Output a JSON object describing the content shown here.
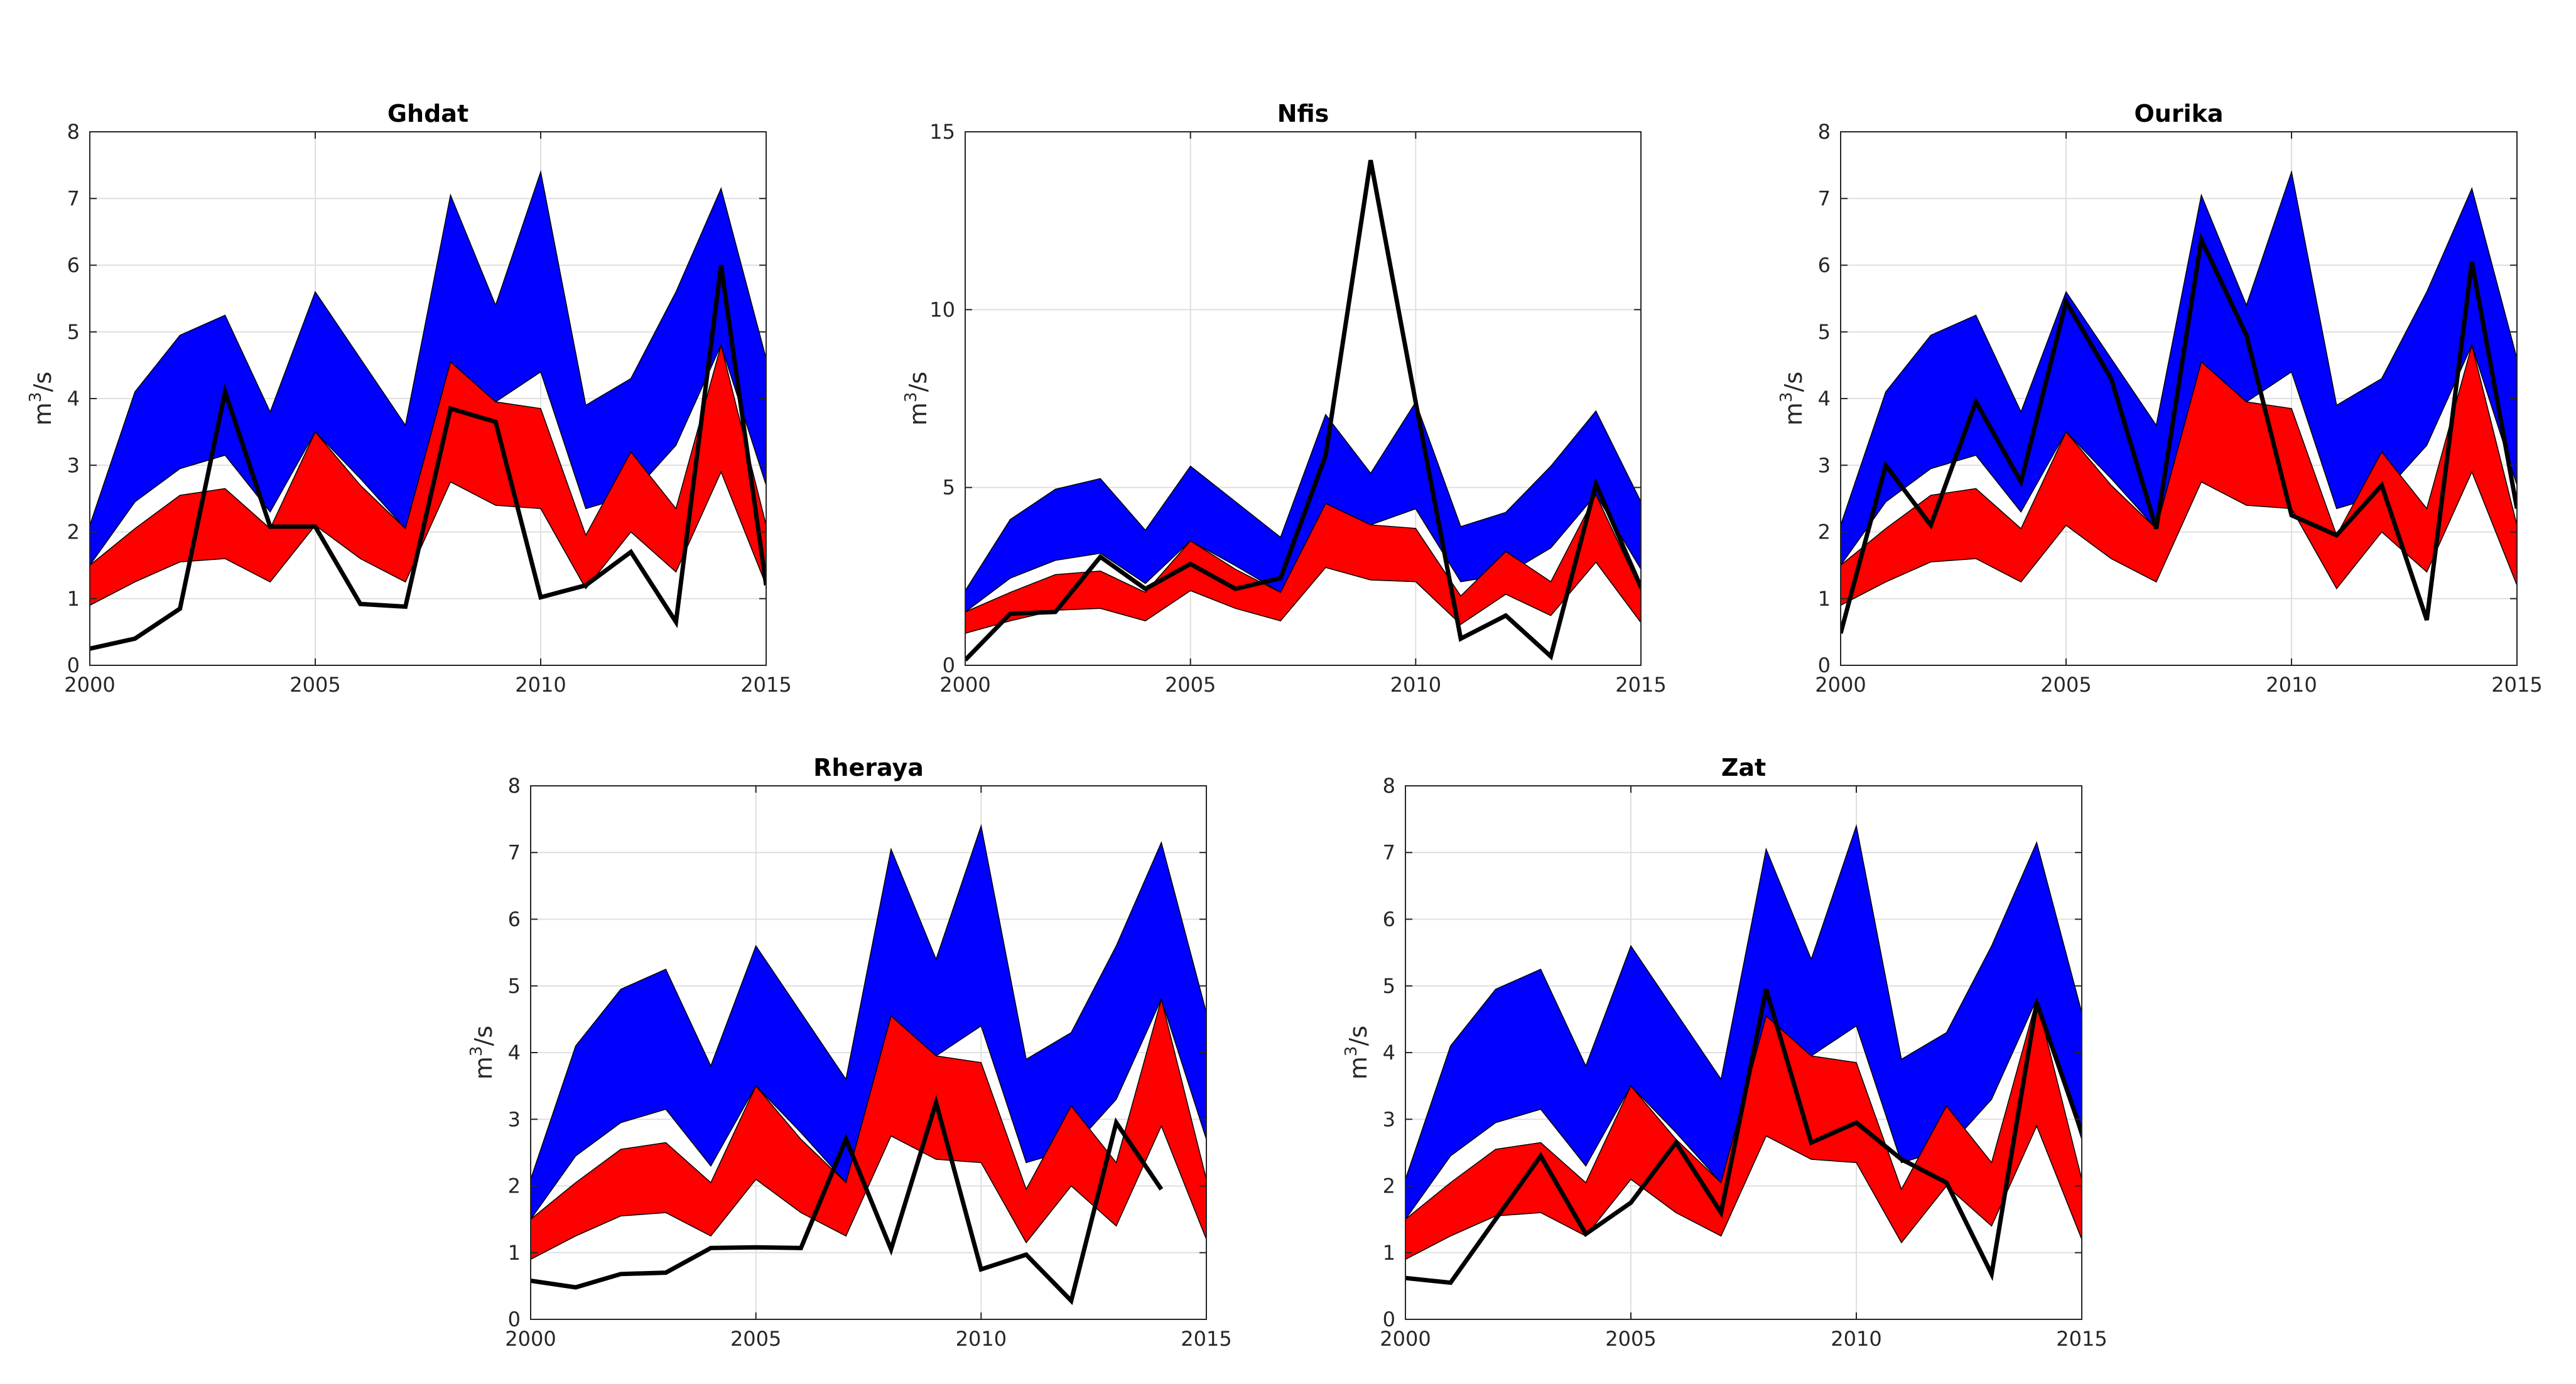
{
  "colors": {
    "upper_band": "#0000ff",
    "lower_band": "#ff0000",
    "observed_line": "#000000",
    "grid": "#dfdfdf"
  },
  "chart_data": [
    {
      "type": "area",
      "title": "Ghdat",
      "ylabel_base": "m",
      "ylabel_sup": "3",
      "ylabel_tail": "/s",
      "xlim": [
        2000,
        2015
      ],
      "ylim": [
        0,
        8
      ],
      "xticks": [
        2000,
        2005,
        2010,
        2015
      ],
      "yticks": [
        0,
        1,
        2,
        3,
        4,
        5,
        6,
        7,
        8
      ],
      "grid": true,
      "x": [
        2000,
        2001,
        2002,
        2003,
        2004,
        2005,
        2006,
        2007,
        2008,
        2009,
        2010,
        2011,
        2012,
        2013,
        2014,
        2015
      ],
      "bands": [
        {
          "color": "upper_band",
          "upper": [
            2.1,
            4.1,
            4.95,
            5.25,
            3.8,
            5.6,
            4.6,
            3.6,
            7.05,
            5.4,
            7.4,
            3.9,
            4.3,
            5.6,
            7.15,
            4.6
          ],
          "lower": [
            1.5,
            2.45,
            2.95,
            3.15,
            2.3,
            3.5,
            2.8,
            2.05,
            4.55,
            3.95,
            4.4,
            2.35,
            2.55,
            3.3,
            4.8,
            2.7
          ]
        },
        {
          "color": "lower_band",
          "upper": [
            1.5,
            2.05,
            2.55,
            2.65,
            2.05,
            3.5,
            2.7,
            2.05,
            4.55,
            3.95,
            3.85,
            1.95,
            3.2,
            2.35,
            4.8,
            2.1
          ],
          "lower": [
            0.9,
            1.25,
            1.55,
            1.6,
            1.25,
            2.1,
            1.6,
            1.25,
            2.75,
            2.4,
            2.35,
            1.15,
            2.0,
            1.4,
            2.9,
            1.2
          ]
        }
      ],
      "line": {
        "x": [
          2000,
          2001,
          2002,
          2003,
          2004,
          2005,
          2006,
          2007,
          2008,
          2009,
          2010,
          2011,
          2012,
          2013,
          2014,
          2015
        ],
        "y": [
          0.25,
          0.4,
          0.85,
          4.1,
          2.08,
          2.08,
          0.92,
          0.88,
          3.85,
          3.65,
          1.02,
          1.2,
          1.7,
          0.65,
          6.0,
          1.2
        ]
      }
    },
    {
      "type": "area",
      "title": "Nfis",
      "ylabel_base": "m",
      "ylabel_sup": "3",
      "ylabel_tail": "/s",
      "xlim": [
        2000,
        2015
      ],
      "ylim": [
        0,
        15
      ],
      "xticks": [
        2000,
        2005,
        2010,
        2015
      ],
      "yticks": [
        0,
        5,
        10,
        15
      ],
      "grid": true,
      "x": [
        2000,
        2001,
        2002,
        2003,
        2004,
        2005,
        2006,
        2007,
        2008,
        2009,
        2010,
        2011,
        2012,
        2013,
        2014,
        2015
      ],
      "bands": [
        {
          "color": "upper_band",
          "upper": [
            2.1,
            4.1,
            4.95,
            5.25,
            3.8,
            5.6,
            4.6,
            3.6,
            7.05,
            5.4,
            7.4,
            3.9,
            4.3,
            5.6,
            7.15,
            4.6
          ],
          "lower": [
            1.5,
            2.45,
            2.95,
            3.15,
            2.3,
            3.5,
            2.8,
            2.05,
            4.55,
            3.95,
            4.4,
            2.35,
            2.55,
            3.3,
            4.8,
            2.7
          ]
        },
        {
          "color": "lower_band",
          "upper": [
            1.5,
            2.05,
            2.55,
            2.65,
            2.05,
            3.5,
            2.7,
            2.05,
            4.55,
            3.95,
            3.85,
            1.95,
            3.2,
            2.35,
            4.8,
            2.1
          ],
          "lower": [
            0.9,
            1.25,
            1.55,
            1.6,
            1.25,
            2.1,
            1.6,
            1.25,
            2.75,
            2.4,
            2.35,
            1.15,
            2.0,
            1.4,
            2.9,
            1.2
          ]
        }
      ],
      "line": {
        "x": [
          2000,
          2001,
          2002,
          2003,
          2004,
          2005,
          2006,
          2007,
          2008,
          2009,
          2010,
          2011,
          2012,
          2013,
          2014,
          2015
        ],
        "y": [
          0.15,
          1.45,
          1.5,
          3.05,
          2.15,
          2.85,
          2.15,
          2.45,
          5.9,
          14.2,
          7.4,
          0.75,
          1.4,
          0.25,
          5.1,
          2.2
        ]
      }
    },
    {
      "type": "area",
      "title": "Ourika",
      "ylabel_base": "m",
      "ylabel_sup": "3",
      "ylabel_tail": "/s",
      "xlim": [
        2000,
        2015
      ],
      "ylim": [
        0,
        8
      ],
      "xticks": [
        2000,
        2005,
        2010,
        2015
      ],
      "yticks": [
        0,
        1,
        2,
        3,
        4,
        5,
        6,
        7,
        8
      ],
      "grid": true,
      "x": [
        2000,
        2001,
        2002,
        2003,
        2004,
        2005,
        2006,
        2007,
        2008,
        2009,
        2010,
        2011,
        2012,
        2013,
        2014,
        2015
      ],
      "bands": [
        {
          "color": "upper_band",
          "upper": [
            2.1,
            4.1,
            4.95,
            5.25,
            3.8,
            5.6,
            4.6,
            3.6,
            7.05,
            5.4,
            7.4,
            3.9,
            4.3,
            5.6,
            7.15,
            4.6
          ],
          "lower": [
            1.5,
            2.45,
            2.95,
            3.15,
            2.3,
            3.5,
            2.8,
            2.05,
            4.55,
            3.95,
            4.4,
            2.35,
            2.55,
            3.3,
            4.8,
            2.7
          ]
        },
        {
          "color": "lower_band",
          "upper": [
            1.5,
            2.05,
            2.55,
            2.65,
            2.05,
            3.5,
            2.7,
            2.05,
            4.55,
            3.95,
            3.85,
            1.95,
            3.2,
            2.35,
            4.8,
            2.1
          ],
          "lower": [
            0.9,
            1.25,
            1.55,
            1.6,
            1.25,
            2.1,
            1.6,
            1.25,
            2.75,
            2.4,
            2.35,
            1.15,
            2.0,
            1.4,
            2.9,
            1.2
          ]
        }
      ],
      "line": {
        "x": [
          2000,
          2001,
          2002,
          2003,
          2004,
          2005,
          2006,
          2007,
          2008,
          2009,
          2010,
          2011,
          2012,
          2013,
          2014,
          2015
        ],
        "y": [
          0.48,
          3.0,
          2.1,
          3.95,
          2.75,
          5.45,
          4.3,
          2.05,
          6.38,
          4.95,
          2.25,
          1.95,
          2.7,
          0.68,
          6.05,
          2.35
        ]
      }
    },
    {
      "type": "area",
      "title": "Rheraya",
      "ylabel_base": "m",
      "ylabel_sup": "3",
      "ylabel_tail": "/s",
      "xlim": [
        2000,
        2015
      ],
      "ylim": [
        0,
        8
      ],
      "xticks": [
        2000,
        2005,
        2010,
        2015
      ],
      "yticks": [
        0,
        1,
        2,
        3,
        4,
        5,
        6,
        7,
        8
      ],
      "grid": true,
      "x": [
        2000,
        2001,
        2002,
        2003,
        2004,
        2005,
        2006,
        2007,
        2008,
        2009,
        2010,
        2011,
        2012,
        2013,
        2014,
        2015
      ],
      "bands": [
        {
          "color": "upper_band",
          "upper": [
            2.1,
            4.1,
            4.95,
            5.25,
            3.8,
            5.6,
            4.6,
            3.6,
            7.05,
            5.4,
            7.4,
            3.9,
            4.3,
            5.6,
            7.15,
            4.6
          ],
          "lower": [
            1.5,
            2.45,
            2.95,
            3.15,
            2.3,
            3.5,
            2.8,
            2.05,
            4.55,
            3.95,
            4.4,
            2.35,
            2.55,
            3.3,
            4.8,
            2.7
          ]
        },
        {
          "color": "lower_band",
          "upper": [
            1.5,
            2.05,
            2.55,
            2.65,
            2.05,
            3.5,
            2.7,
            2.05,
            4.55,
            3.95,
            3.85,
            1.95,
            3.2,
            2.35,
            4.8,
            2.1
          ],
          "lower": [
            0.9,
            1.25,
            1.55,
            1.6,
            1.25,
            2.1,
            1.6,
            1.25,
            2.75,
            2.4,
            2.35,
            1.15,
            2.0,
            1.4,
            2.9,
            1.2
          ]
        }
      ],
      "line": {
        "x": [
          2000,
          2001,
          2002,
          2003,
          2004,
          2005,
          2006,
          2007,
          2008,
          2009,
          2010,
          2011,
          2012,
          2013,
          2014
        ],
        "y": [
          0.58,
          0.48,
          0.68,
          0.7,
          1.07,
          1.08,
          1.07,
          2.7,
          1.05,
          3.25,
          0.75,
          0.97,
          0.28,
          2.95,
          1.95
        ]
      }
    },
    {
      "type": "area",
      "title": "Zat",
      "ylabel_base": "m",
      "ylabel_sup": "3",
      "ylabel_tail": "/s",
      "xlim": [
        2000,
        2015
      ],
      "ylim": [
        0,
        8
      ],
      "xticks": [
        2000,
        2005,
        2010,
        2015
      ],
      "yticks": [
        0,
        1,
        2,
        3,
        4,
        5,
        6,
        7,
        8
      ],
      "grid": true,
      "x": [
        2000,
        2001,
        2002,
        2003,
        2004,
        2005,
        2006,
        2007,
        2008,
        2009,
        2010,
        2011,
        2012,
        2013,
        2014,
        2015
      ],
      "bands": [
        {
          "color": "upper_band",
          "upper": [
            2.1,
            4.1,
            4.95,
            5.25,
            3.8,
            5.6,
            4.6,
            3.6,
            7.05,
            5.4,
            7.4,
            3.9,
            4.3,
            5.6,
            7.15,
            4.6
          ],
          "lower": [
            1.5,
            2.45,
            2.95,
            3.15,
            2.3,
            3.5,
            2.8,
            2.05,
            4.55,
            3.95,
            4.4,
            2.35,
            2.55,
            3.3,
            4.8,
            2.7
          ]
        },
        {
          "color": "lower_band",
          "upper": [
            1.5,
            2.05,
            2.55,
            2.65,
            2.05,
            3.5,
            2.7,
            2.05,
            4.55,
            3.95,
            3.85,
            1.95,
            3.2,
            2.35,
            4.8,
            2.1
          ],
          "lower": [
            0.9,
            1.25,
            1.55,
            1.6,
            1.25,
            2.1,
            1.6,
            1.25,
            2.75,
            2.4,
            2.35,
            1.15,
            2.0,
            1.4,
            2.9,
            1.2
          ]
        }
      ],
      "line": {
        "x": [
          2000,
          2001,
          2002,
          2003,
          2004,
          2005,
          2006,
          2007,
          2008,
          2009,
          2010,
          2011,
          2012,
          2013,
          2014,
          2015
        ],
        "y": [
          0.62,
          0.55,
          1.5,
          2.45,
          1.28,
          1.75,
          2.65,
          1.6,
          4.95,
          2.65,
          2.95,
          2.4,
          2.05,
          0.68,
          4.75,
          2.8
        ]
      }
    }
  ]
}
